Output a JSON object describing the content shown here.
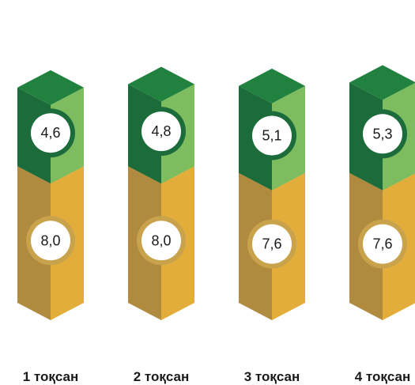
{
  "chart_data": {
    "type": "bar",
    "stacked": true,
    "style": "3d-isometric-columns",
    "categories": [
      "1 тоқсан",
      "2 тоқсан",
      "3 тоқсан",
      "4 тоқсан"
    ],
    "series": [
      {
        "values": [
          8.0,
          8.0,
          7.6,
          7.6
        ],
        "labels": [
          "8,0",
          "8,0",
          "7,6",
          "7,6"
        ],
        "color": "#e2ad3b",
        "color_dark": "#b08a3e",
        "color_top": "#c9a24c"
      },
      {
        "values": [
          4.6,
          4.8,
          5.1,
          5.3
        ],
        "labels": [
          "4,6",
          "4,8",
          "5,1",
          "5,3"
        ],
        "color": "#7dbd5f",
        "color_dark": "#1c6b3a",
        "color_top": "#21813f"
      }
    ],
    "legend": "none",
    "grid": false,
    "ylim": [
      0,
      15
    ]
  }
}
